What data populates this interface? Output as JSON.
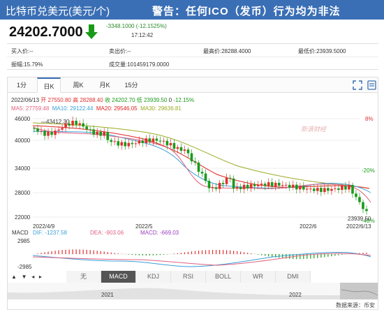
{
  "header": {
    "title": "比特币兑美元(美元/个)",
    "warning": "警告：任何ICO（发币）行为均为非法"
  },
  "quote": {
    "price": "24202.7000",
    "change": "-3348.1000 (-12.1525%)",
    "time": "17:12:42"
  },
  "info": {
    "buy": "买入价:--",
    "sell": "卖出价:--",
    "high": "最高价:28288.4000",
    "low": "最低价:23939.5000",
    "amplitude": "振幅:15.79%",
    "volume": "成交量:101459179.0000"
  },
  "tabs": [
    "1分",
    "日K",
    "周K",
    "月K",
    "15分"
  ],
  "active_tab": "日K",
  "ohlc_line": {
    "date": "2022/06/13",
    "open": "开 27550.80",
    "high": "高 28288.40",
    "close": "收 24202.70",
    "low": "低 23939.50",
    "zero": "0",
    "pct": "-12.15%"
  },
  "ma_line": {
    "ma5": "MA5: 27759.48",
    "ma10": "MA10: 29122.44",
    "ma20": "MA20: 29546.05",
    "ma30": "MA30: 29636.81"
  },
  "axis": {
    "y_left": [
      "46000",
      "40000",
      "34000",
      "28000",
      "22000"
    ],
    "y_right": [
      "8%",
      "-20%",
      "-48%"
    ],
    "x_dates": [
      "2022/4/9",
      "2022/5",
      "2022/6",
      "2022/6/13"
    ],
    "hi_label": "43412.30",
    "lo_label": "23939.50",
    "watermark": "新浪财经"
  },
  "macd": {
    "label": "MACD",
    "dif": "DIF: -1237.58",
    "dea": "DEA: -903.06",
    "macd": "MACD: -669.03",
    "top": "2985",
    "bottom": "-2985"
  },
  "indicators": [
    "无",
    "MACD",
    "KDJ",
    "RSI",
    "BOLL",
    "WR",
    "DMI"
  ],
  "active_indicator": "MACD",
  "nav": {
    "years": [
      "2021",
      "2022"
    ]
  },
  "footer": "数据来源：币安",
  "colors": {
    "header": "#3a6fb5",
    "up": "#e03030",
    "down": "#1a9a1a",
    "ma5": "#e06080",
    "ma10": "#3aa0d8",
    "ma20": "#e02020",
    "ma30": "#9aaa20"
  }
}
